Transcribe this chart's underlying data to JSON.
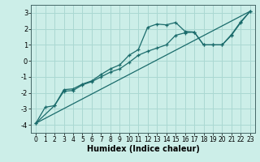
{
  "xlabel": "Humidex (Indice chaleur)",
  "bg_color": "#cceee8",
  "grid_color": "#aad8d2",
  "line_color": "#1a6b6b",
  "xlim": [
    -0.5,
    23.5
  ],
  "ylim": [
    -4.5,
    3.5
  ],
  "xticks": [
    0,
    1,
    2,
    3,
    4,
    5,
    6,
    7,
    8,
    9,
    10,
    11,
    12,
    13,
    14,
    15,
    16,
    17,
    18,
    19,
    20,
    21,
    22,
    23
  ],
  "yticks": [
    -4,
    -3,
    -2,
    -1,
    0,
    1,
    2,
    3
  ],
  "line1_x": [
    0,
    1,
    2,
    3,
    4,
    5,
    6,
    7,
    8,
    9,
    10,
    11,
    12,
    13,
    14,
    15,
    16,
    17,
    18,
    19,
    20,
    21,
    22,
    23
  ],
  "line1_y": [
    -3.9,
    -2.9,
    -2.8,
    -1.8,
    -1.75,
    -1.45,
    -1.25,
    -0.85,
    -0.5,
    -0.25,
    0.35,
    0.7,
    2.1,
    2.3,
    2.25,
    2.4,
    1.85,
    1.8,
    1.0,
    1.0,
    1.0,
    1.65,
    2.45,
    3.1
  ],
  "line2_x": [
    0,
    2,
    3,
    4,
    5,
    6,
    7,
    8,
    9,
    10,
    11,
    12,
    13,
    14,
    15,
    16,
    17,
    18,
    19,
    20,
    21,
    22,
    23
  ],
  "line2_y": [
    -3.9,
    -2.8,
    -1.9,
    -1.85,
    -1.5,
    -1.3,
    -1.0,
    -0.7,
    -0.5,
    -0.1,
    0.35,
    0.6,
    0.8,
    1.0,
    1.6,
    1.75,
    1.8,
    1.0,
    1.0,
    1.0,
    1.6,
    2.4,
    3.1
  ],
  "line3_x": [
    0,
    23
  ],
  "line3_y": [
    -3.9,
    3.1
  ]
}
